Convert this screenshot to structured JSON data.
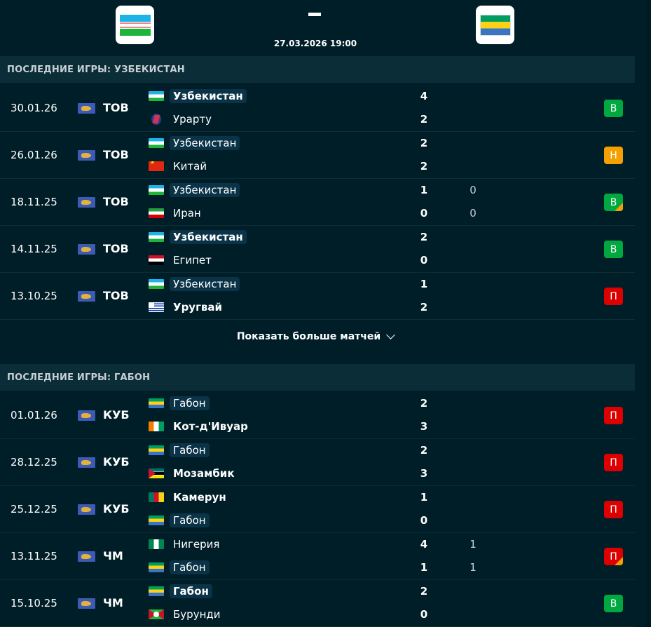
{
  "header": {
    "home_team_flag": "uzb",
    "away_team_flag": "gab",
    "datetime": "27.03.2026 19:00"
  },
  "colors": {
    "background": "#001e28",
    "section_header": "#0b2d38",
    "win": "#00a83f",
    "draw": "#f3a000",
    "loss": "#dc0000"
  },
  "sections": [
    {
      "title": "ПОСЛЕДНИЕ ИГРЫ: УЗБЕКИСТАН",
      "matches": [
        {
          "date": "30.01.26",
          "comp": "ТОВ",
          "home": {
            "name": "Узбекистан",
            "flag": "uzb",
            "bold": true,
            "highlight": true
          },
          "away": {
            "name": "Урарту",
            "flag": "urt",
            "bold": false,
            "highlight": false
          },
          "score_home": "4",
          "score_away": "2",
          "pen_home": "",
          "pen_away": "",
          "result": "В",
          "result_type": "win",
          "corner": ""
        },
        {
          "date": "26.01.26",
          "comp": "ТОВ",
          "home": {
            "name": "Узбекистан",
            "flag": "uzb",
            "bold": false,
            "highlight": true
          },
          "away": {
            "name": "Китай",
            "flag": "chn",
            "bold": false,
            "highlight": false
          },
          "score_home": "2",
          "score_away": "2",
          "pen_home": "",
          "pen_away": "",
          "result": "Н",
          "result_type": "draw",
          "corner": ""
        },
        {
          "date": "18.11.25",
          "comp": "ТОВ",
          "home": {
            "name": "Узбекистан",
            "flag": "uzb",
            "bold": false,
            "highlight": true
          },
          "away": {
            "name": "Иран",
            "flag": "irn",
            "bold": false,
            "highlight": false
          },
          "score_home": "1",
          "score_away": "0",
          "pen_home": "0",
          "pen_away": "0",
          "result": "В",
          "result_type": "win",
          "corner": "draw"
        },
        {
          "date": "14.11.25",
          "comp": "ТОВ",
          "home": {
            "name": "Узбекистан",
            "flag": "uzb",
            "bold": true,
            "highlight": true
          },
          "away": {
            "name": "Египет",
            "flag": "egy",
            "bold": false,
            "highlight": false
          },
          "score_home": "2",
          "score_away": "0",
          "pen_home": "",
          "pen_away": "",
          "result": "В",
          "result_type": "win",
          "corner": ""
        },
        {
          "date": "13.10.25",
          "comp": "ТОВ",
          "home": {
            "name": "Узбекистан",
            "flag": "uzb",
            "bold": false,
            "highlight": true
          },
          "away": {
            "name": "Уругвай",
            "flag": "ury",
            "bold": true,
            "highlight": false
          },
          "score_home": "1",
          "score_away": "2",
          "pen_home": "",
          "pen_away": "",
          "result": "П",
          "result_type": "loss",
          "corner": ""
        }
      ]
    },
    {
      "title": "ПОСЛЕДНИЕ ИГРЫ: ГАБОН",
      "matches": [
        {
          "date": "01.01.26",
          "comp": "КУБ",
          "home": {
            "name": "Габон",
            "flag": "gab",
            "bold": false,
            "highlight": true
          },
          "away": {
            "name": "Кот-д'Ивуар",
            "flag": "civ",
            "bold": true,
            "highlight": false
          },
          "score_home": "2",
          "score_away": "3",
          "pen_home": "",
          "pen_away": "",
          "result": "П",
          "result_type": "loss",
          "corner": ""
        },
        {
          "date": "28.12.25",
          "comp": "КУБ",
          "home": {
            "name": "Габон",
            "flag": "gab",
            "bold": false,
            "highlight": true
          },
          "away": {
            "name": "Мозамбик",
            "flag": "moz",
            "bold": true,
            "highlight": false
          },
          "score_home": "2",
          "score_away": "3",
          "pen_home": "",
          "pen_away": "",
          "result": "П",
          "result_type": "loss",
          "corner": ""
        },
        {
          "date": "25.12.25",
          "comp": "КУБ",
          "home": {
            "name": "Камерун",
            "flag": "cmr",
            "bold": true,
            "highlight": false
          },
          "away": {
            "name": "Габон",
            "flag": "gab",
            "bold": false,
            "highlight": true
          },
          "score_home": "1",
          "score_away": "0",
          "pen_home": "",
          "pen_away": "",
          "result": "П",
          "result_type": "loss",
          "corner": ""
        },
        {
          "date": "13.11.25",
          "comp": "ЧМ",
          "home": {
            "name": "Нигерия",
            "flag": "nga",
            "bold": false,
            "highlight": false
          },
          "away": {
            "name": "Габон",
            "flag": "gab",
            "bold": false,
            "highlight": true
          },
          "score_home": "4",
          "score_away": "1",
          "pen_home": "1",
          "pen_away": "1",
          "result": "П",
          "result_type": "loss",
          "corner": "draw"
        },
        {
          "date": "15.10.25",
          "comp": "ЧМ",
          "home": {
            "name": "Габон",
            "flag": "gab",
            "bold": true,
            "highlight": true
          },
          "away": {
            "name": "Бурунди",
            "flag": "bdi",
            "bold": false,
            "highlight": false
          },
          "score_home": "2",
          "score_away": "0",
          "pen_home": "",
          "pen_away": "",
          "result": "В",
          "result_type": "win",
          "corner": ""
        }
      ]
    }
  ],
  "show_more_label": "Показать больше матчей",
  "icons": {
    "competition": "world-map-icon",
    "show_more": "chevron-down-icon"
  }
}
